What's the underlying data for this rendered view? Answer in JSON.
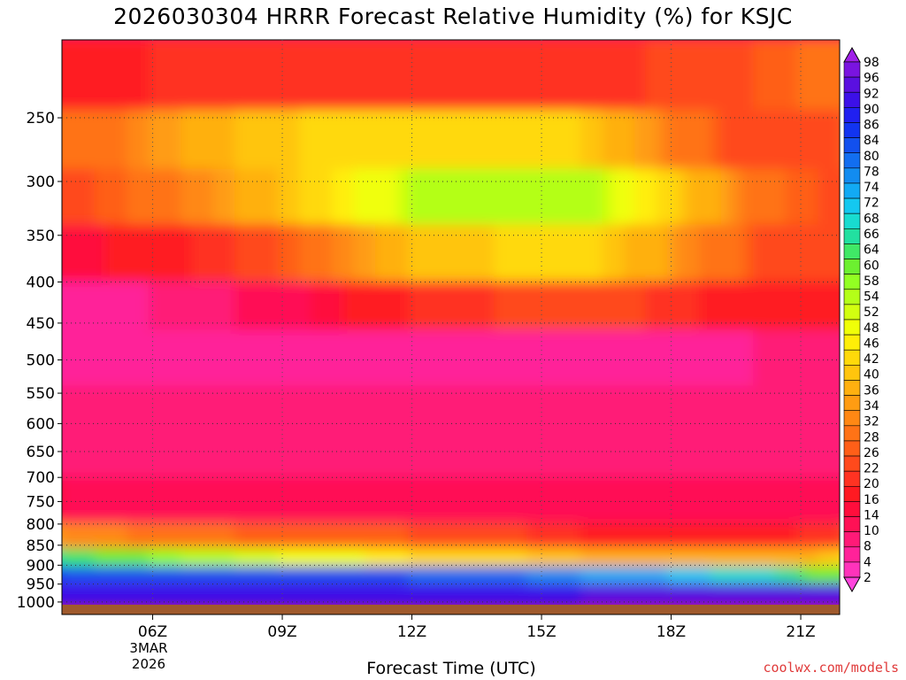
{
  "chart_data": {
    "type": "heatmap",
    "title": "2026030304 HRRR Forecast Relative Humidity (%) for KSJC",
    "xlabel": "Forecast Time (UTC)",
    "ylabel": "",
    "x_ticks": [
      "06Z",
      "09Z",
      "12Z",
      "15Z",
      "18Z",
      "21Z"
    ],
    "x_hours": [
      6,
      9,
      12,
      15,
      18,
      21
    ],
    "x_range_hours": [
      3.9,
      21.9
    ],
    "date_label": [
      "3MAR",
      "2026"
    ],
    "y_ticks": [
      250,
      300,
      350,
      400,
      450,
      500,
      550,
      600,
      650,
      700,
      750,
      800,
      850,
      900,
      950,
      1000
    ],
    "y_range_hpa": [
      200,
      1013
    ],
    "y_scale": "log-pressure",
    "grid": true,
    "colorbar_levels": [
      2,
      4,
      8,
      10,
      14,
      16,
      20,
      22,
      26,
      28,
      32,
      34,
      36,
      40,
      42,
      46,
      48,
      52,
      54,
      58,
      60,
      64,
      66,
      68,
      72,
      74,
      78,
      80,
      84,
      86,
      90,
      92,
      96,
      98
    ],
    "colorbar_colors": [
      "#ff44dd",
      "#ff33bb",
      "#ff2299",
      "#ff1a77",
      "#ff1155",
      "#ff0e3c",
      "#ff1a22",
      "#ff3322",
      "#ff4a1c",
      "#ff5f18",
      "#ff7316",
      "#ff8814",
      "#ff9c12",
      "#ffb010",
      "#ffc50d",
      "#ffd90a",
      "#ffee08",
      "#f0ff08",
      "#d2ff10",
      "#b4ff18",
      "#92ff22",
      "#6cf030",
      "#40e866",
      "#22e0a0",
      "#18dcd0",
      "#14c8f0",
      "#12aaf4",
      "#128cf0",
      "#126ef0",
      "#1250ee",
      "#1234f0",
      "#2020f0",
      "#3c10e8",
      "#5a10e0",
      "#7a14e0",
      "#a020e8"
    ],
    "bands": [
      {
        "from_hpa": 200,
        "to_hpa": 245,
        "profile_hours": [
          4,
          8,
          12,
          16,
          20,
          22
        ],
        "profile_rh": [
          18,
          22,
          21,
          20,
          26,
          30
        ]
      },
      {
        "from_hpa": 245,
        "to_hpa": 290,
        "profile_hours": [
          4,
          8,
          12,
          16,
          20,
          22
        ],
        "profile_rh": [
          28,
          40,
          46,
          42,
          22,
          26
        ]
      },
      {
        "from_hpa": 290,
        "to_hpa": 340,
        "profile_hours": [
          4,
          8,
          12,
          16,
          20,
          22
        ],
        "profile_rh": [
          24,
          36,
          54,
          56,
          30,
          24
        ]
      },
      {
        "from_hpa": 340,
        "to_hpa": 400,
        "profile_hours": [
          4,
          8,
          12,
          16,
          20,
          22
        ],
        "profile_rh": [
          14,
          22,
          40,
          44,
          26,
          22
        ]
      },
      {
        "from_hpa": 400,
        "to_hpa": 460,
        "profile_hours": [
          4,
          8,
          12,
          16,
          20,
          22
        ],
        "profile_rh": [
          6,
          10,
          20,
          24,
          18,
          16
        ]
      },
      {
        "from_hpa": 460,
        "to_hpa": 540,
        "profile_hours": [
          4,
          8,
          12,
          16,
          20,
          22
        ],
        "profile_rh": [
          4,
          4,
          4,
          6,
          8,
          8
        ]
      },
      {
        "from_hpa": 540,
        "to_hpa": 700,
        "profile_hours": [
          4,
          8,
          12,
          16,
          20,
          22
        ],
        "profile_rh": [
          8,
          8,
          8,
          8,
          8,
          8
        ]
      },
      {
        "from_hpa": 700,
        "to_hpa": 800,
        "profile_hours": [
          4,
          8,
          12,
          16,
          20,
          22
        ],
        "profile_rh": [
          14,
          12,
          12,
          10,
          10,
          10
        ]
      },
      {
        "from_hpa": 800,
        "to_hpa": 860,
        "profile_hours": [
          4,
          8,
          12,
          16,
          20,
          22
        ],
        "profile_rh": [
          34,
          28,
          26,
          20,
          18,
          22
        ]
      },
      {
        "from_hpa": 860,
        "to_hpa": 905,
        "profile_hours": [
          4,
          8,
          12,
          16,
          20,
          22
        ],
        "profile_rh": [
          66,
          54,
          46,
          40,
          36,
          42
        ]
      },
      {
        "from_hpa": 905,
        "to_hpa": 950,
        "profile_hours": [
          4,
          8,
          12,
          16,
          20,
          22
        ],
        "profile_rh": [
          86,
          84,
          84,
          78,
          70,
          60
        ]
      },
      {
        "from_hpa": 950,
        "to_hpa": 1013,
        "profile_hours": [
          4,
          8,
          12,
          16,
          20,
          22
        ],
        "profile_rh": [
          92,
          92,
          94,
          96,
          96,
          96
        ]
      }
    ]
  },
  "footer": {
    "credit": "coolwx.com/models"
  }
}
